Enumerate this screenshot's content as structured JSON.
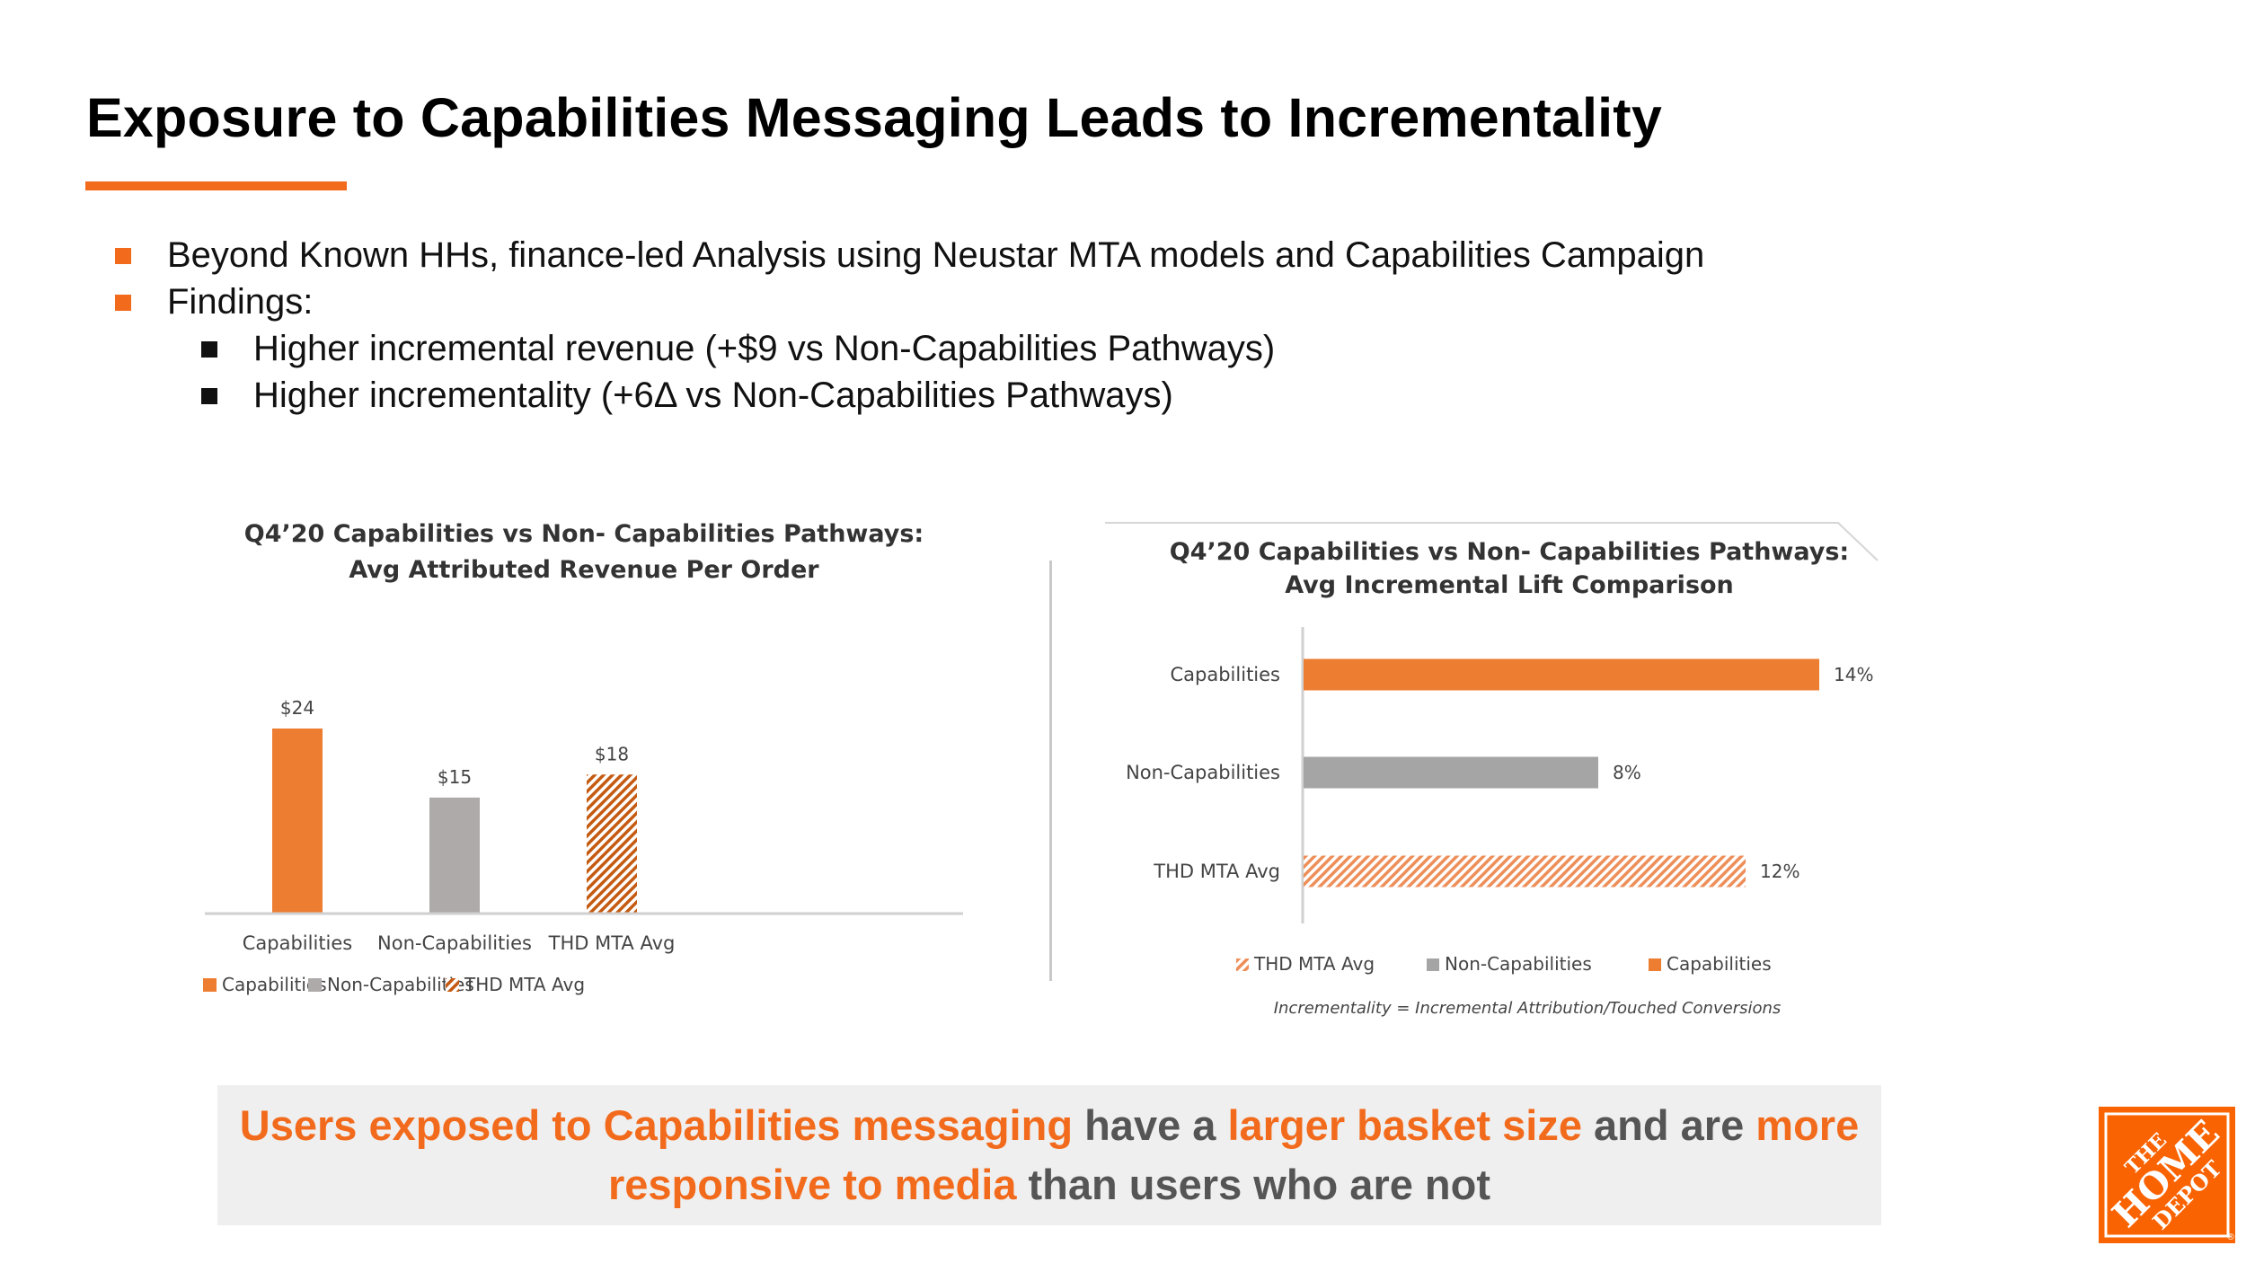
{
  "slide": {
    "title": "Exposure to Capabilities Messaging Leads to Incrementality",
    "accent_color": "#f26b1d",
    "bullets": [
      "Beyond Known HHs, finance-led Analysis using Neustar MTA models and Capabilities Campaign",
      "Findings:",
      "Higher incremental revenue (+$9 vs Non-Capabilities Pathways)",
      "Higher incrementality (+6Δ vs Non-Capabilities Pathways)"
    ]
  },
  "chart_data": [
    {
      "type": "bar",
      "title": [
        "Q4’20 Capabilities vs Non- Capabilities Pathways:",
        "Avg Attributed Revenue Per Order"
      ],
      "categories": [
        "Capabilities",
        "Non-Capabilities",
        "THD MTA Avg"
      ],
      "values": [
        24,
        15,
        18
      ],
      "data_labels": [
        "$24",
        "$15",
        "$18"
      ],
      "colors": [
        "#ed7d31",
        "#aeaaaa",
        "#c55a11"
      ],
      "pattern": [
        "solid",
        "solid",
        "hatched"
      ],
      "ylim": [
        0,
        30
      ],
      "legend": [
        "Capabilities",
        "Non-Capabilities",
        "THD MTA Avg"
      ],
      "legend_position": "bottom",
      "grid": false
    },
    {
      "type": "bar",
      "orientation": "horizontal",
      "title": [
        "Q4’20 Capabilities vs Non- Capabilities Pathways:",
        "Avg Incremental Lift Comparison"
      ],
      "categories": [
        "Capabilities",
        "Non-Capabilities",
        "THD MTA Avg"
      ],
      "values": [
        14,
        8,
        12
      ],
      "data_labels": [
        "14%",
        "8%",
        "12%"
      ],
      "colors": [
        "#ed7d31",
        "#a5a5a5",
        "#f4b183"
      ],
      "pattern": [
        "solid",
        "solid",
        "hatched"
      ],
      "xlim": [
        0,
        14
      ],
      "legend": [
        "THD MTA Avg",
        "Non-Capabilities",
        "Capabilities"
      ],
      "legend_position": "bottom",
      "footnote": "Incrementality = Incremental Attribution/Touched Conversions",
      "grid": false
    }
  ],
  "callout": {
    "p1": "Users exposed to Capabilities messaging",
    "p2": " have a ",
    "p3": "larger basket size",
    "p4": " and are ",
    "p5": "more responsive to media",
    "p6": " than users who are not"
  },
  "logo": {
    "line1": "THE",
    "line2": "HOME",
    "line3": "DEPOT",
    "trademark": "®",
    "color": "#f96302"
  }
}
